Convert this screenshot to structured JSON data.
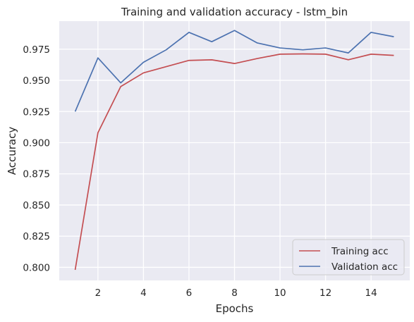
{
  "chart_data": {
    "type": "line",
    "title": "Training and validation accuracy - lstm_bin",
    "xlabel": "Epochs",
    "ylabel": "Accuracy",
    "x": [
      1,
      2,
      3,
      4,
      5,
      6,
      7,
      8,
      9,
      10,
      11,
      12,
      13,
      14,
      15
    ],
    "xticks": [
      2,
      4,
      6,
      8,
      10,
      12,
      14
    ],
    "yticks": [
      0.8,
      0.825,
      0.85,
      0.875,
      0.9,
      0.925,
      0.95,
      0.975
    ],
    "ytick_labels": [
      "0.800",
      "0.825",
      "0.850",
      "0.875",
      "0.900",
      "0.925",
      "0.950",
      "0.975"
    ],
    "xlim": [
      0.3,
      15.7
    ],
    "ylim": [
      0.7895,
      0.9975
    ],
    "grid": true,
    "legend_position": "lower-right",
    "series": [
      {
        "name": "Training acc",
        "color": "#c44e52",
        "values": [
          0.798,
          0.908,
          0.945,
          0.956,
          0.961,
          0.966,
          0.9665,
          0.9635,
          0.9675,
          0.971,
          0.9712,
          0.971,
          0.9665,
          0.971,
          0.97
        ]
      },
      {
        "name": "Validation acc",
        "color": "#4c72b0",
        "values": [
          0.925,
          0.968,
          0.948,
          0.9645,
          0.9745,
          0.9885,
          0.981,
          0.99,
          0.98,
          0.976,
          0.9745,
          0.976,
          0.972,
          0.9885,
          0.985
        ]
      }
    ]
  }
}
